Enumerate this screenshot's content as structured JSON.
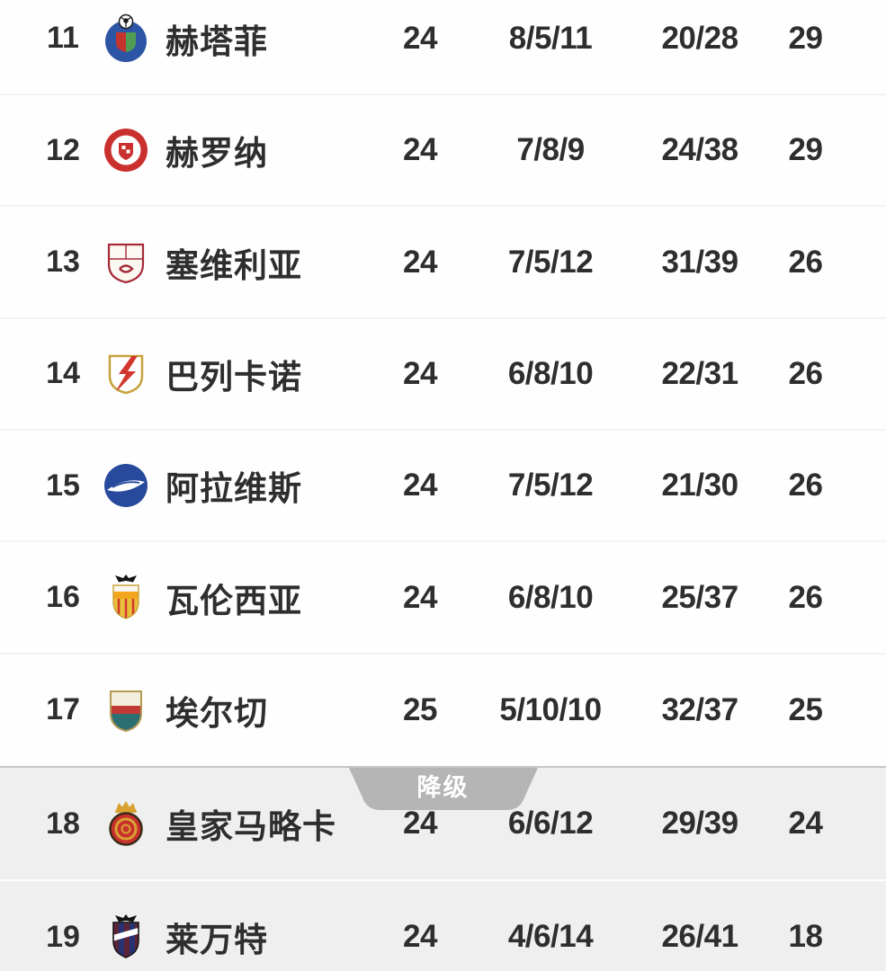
{
  "colors": {
    "text": "#2e2e2e",
    "row_divider": "#f3f3f3",
    "section_line": "#c6c6c6",
    "section_bg": "#efefef",
    "tab_bg": "#b5b5b5",
    "tab_text": "#ffffff"
  },
  "relegation": {
    "label": "降级"
  },
  "standings": {
    "columns": [
      "rank",
      "team",
      "played",
      "win_draw_loss",
      "goals_for_against",
      "points"
    ],
    "rows": [
      {
        "rank": "11",
        "team": "赫塔菲",
        "played": "24",
        "record": "8/5/11",
        "goals": "20/28",
        "points": "29",
        "zone": "safe",
        "crest": {
          "name": "getafe-crest",
          "style": "getafe",
          "colors": [
            "#2d55a5",
            "#c4342f",
            "#4f9e53",
            "#ffffff",
            "#1c1c1c"
          ]
        }
      },
      {
        "rank": "12",
        "team": "赫罗纳",
        "played": "24",
        "record": "7/8/9",
        "goals": "24/38",
        "points": "29",
        "zone": "safe",
        "crest": {
          "name": "girona-crest",
          "style": "girona",
          "colors": [
            "#c9302e",
            "#ffffff"
          ]
        }
      },
      {
        "rank": "13",
        "team": "塞维利亚",
        "played": "24",
        "record": "7/5/12",
        "goals": "31/39",
        "points": "26",
        "zone": "safe",
        "crest": {
          "name": "sevilla-crest",
          "style": "sevilla",
          "colors": [
            "#fbf7f1",
            "#a62b38",
            "#d8c49a"
          ]
        }
      },
      {
        "rank": "14",
        "team": "巴列卡诺",
        "played": "24",
        "record": "6/8/10",
        "goals": "22/31",
        "points": "26",
        "zone": "safe",
        "crest": {
          "name": "rayo-vallecano-crest",
          "style": "rayo",
          "colors": [
            "#ffffff",
            "#c8a13c",
            "#d1372f"
          ]
        }
      },
      {
        "rank": "15",
        "team": "阿拉维斯",
        "played": "24",
        "record": "7/5/12",
        "goals": "21/30",
        "points": "26",
        "zone": "safe",
        "crest": {
          "name": "alaves-crest",
          "style": "alaves",
          "colors": [
            "#274a9d",
            "#ffffff"
          ]
        }
      },
      {
        "rank": "16",
        "team": "瓦伦西亚",
        "played": "24",
        "record": "6/8/10",
        "goals": "25/37",
        "points": "26",
        "zone": "safe",
        "crest": {
          "name": "valencia-crest",
          "style": "valencia",
          "colors": [
            "#f9f7ee",
            "#f3a51c",
            "#141414",
            "#e8bf3a",
            "#d1372f",
            "#caa53e"
          ]
        }
      },
      {
        "rank": "17",
        "team": "埃尔切",
        "played": "25",
        "record": "5/10/10",
        "goals": "32/37",
        "points": "25",
        "zone": "safe",
        "crest": {
          "name": "elche-crest",
          "style": "elche",
          "colors": [
            "#f4eedd",
            "#c23a36",
            "#2b6f72",
            "#b59a54"
          ]
        }
      },
      {
        "rank": "18",
        "team": "皇家马略卡",
        "played": "24",
        "record": "6/6/12",
        "goals": "29/39",
        "points": "24",
        "zone": "relegation",
        "crest": {
          "name": "mallorca-crest",
          "style": "mallorca",
          "colors": [
            "#c8312b",
            "#d9a331",
            "#3a2a18"
          ]
        }
      },
      {
        "rank": "19",
        "team": "莱万特",
        "played": "24",
        "record": "4/6/14",
        "goals": "26/41",
        "points": "18",
        "zone": "relegation",
        "crest": {
          "name": "levante-crest",
          "style": "levante",
          "colors": [
            "#5d2438",
            "#273272",
            "#141414",
            "#ffffff"
          ]
        }
      }
    ]
  }
}
